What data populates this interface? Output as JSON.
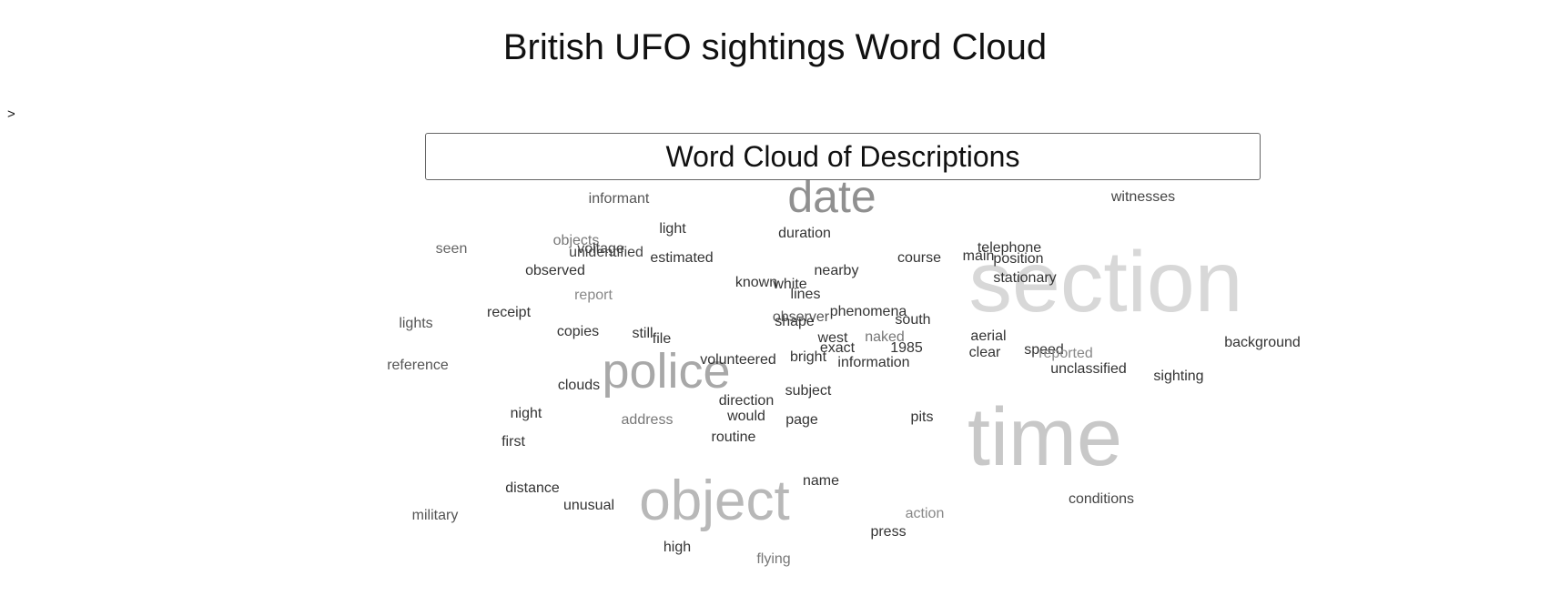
{
  "page": {
    "title": "British UFO sightings Word Cloud",
    "prompt_marker": ">"
  },
  "chart_data": {
    "type": "wordcloud",
    "title": "Word Cloud of Descriptions",
    "words": [
      {
        "text": "section",
        "size": 95,
        "color": "#d8d8d8"
      },
      {
        "text": "time",
        "size": 90,
        "color": "#c8c8c8"
      },
      {
        "text": "object",
        "size": 62,
        "color": "#b8b8b8"
      },
      {
        "text": "police",
        "size": 54,
        "color": "#a8a8a8"
      },
      {
        "text": "date",
        "size": 50,
        "color": "#909090"
      },
      {
        "text": "informant",
        "size": 16,
        "color": "#555555"
      },
      {
        "text": "witnesses",
        "size": 16,
        "color": "#444444"
      },
      {
        "text": "seen",
        "size": 16,
        "color": "#666666"
      },
      {
        "text": "objects",
        "size": 16,
        "color": "#777777"
      },
      {
        "text": "voltage",
        "size": 16,
        "color": "#444444"
      },
      {
        "text": "unidentified",
        "size": 16,
        "color": "#444444"
      },
      {
        "text": "light",
        "size": 16,
        "color": "#333333"
      },
      {
        "text": "duration",
        "size": 16,
        "color": "#333333"
      },
      {
        "text": "telephone",
        "size": 16,
        "color": "#333333"
      },
      {
        "text": "main",
        "size": 16,
        "color": "#333333"
      },
      {
        "text": "position",
        "size": 16,
        "color": "#333333"
      },
      {
        "text": "estimated",
        "size": 16,
        "color": "#333333"
      },
      {
        "text": "course",
        "size": 16,
        "color": "#333333"
      },
      {
        "text": "observed",
        "size": 16,
        "color": "#333333"
      },
      {
        "text": "nearby",
        "size": 16,
        "color": "#333333"
      },
      {
        "text": "stationary",
        "size": 16,
        "color": "#333333"
      },
      {
        "text": "known",
        "size": 16,
        "color": "#333333"
      },
      {
        "text": "white",
        "size": 16,
        "color": "#333333"
      },
      {
        "text": "report",
        "size": 16,
        "color": "#888888"
      },
      {
        "text": "lines",
        "size": 16,
        "color": "#333333"
      },
      {
        "text": "receipt",
        "size": 16,
        "color": "#333333"
      },
      {
        "text": "phenomena",
        "size": 16,
        "color": "#333333"
      },
      {
        "text": "observer",
        "size": 16,
        "color": "#555555"
      },
      {
        "text": "shape",
        "size": 16,
        "color": "#333333"
      },
      {
        "text": "south",
        "size": 16,
        "color": "#333333"
      },
      {
        "text": "lights",
        "size": 16,
        "color": "#555555"
      },
      {
        "text": "copies",
        "size": 16,
        "color": "#333333"
      },
      {
        "text": "still",
        "size": 16,
        "color": "#333333"
      },
      {
        "text": "file",
        "size": 16,
        "color": "#333333"
      },
      {
        "text": "west",
        "size": 16,
        "color": "#333333"
      },
      {
        "text": "naked",
        "size": 16,
        "color": "#777777"
      },
      {
        "text": "aerial",
        "size": 16,
        "color": "#333333"
      },
      {
        "text": "exact",
        "size": 16,
        "color": "#333333"
      },
      {
        "text": "1985",
        "size": 16,
        "color": "#333333"
      },
      {
        "text": "clear",
        "size": 16,
        "color": "#333333"
      },
      {
        "text": "speed",
        "size": 16,
        "color": "#333333"
      },
      {
        "text": "reported",
        "size": 16,
        "color": "#888888"
      },
      {
        "text": "background",
        "size": 16,
        "color": "#333333"
      },
      {
        "text": "volunteered",
        "size": 16,
        "color": "#333333"
      },
      {
        "text": "bright",
        "size": 16,
        "color": "#333333"
      },
      {
        "text": "information",
        "size": 16,
        "color": "#333333"
      },
      {
        "text": "unclassified",
        "size": 16,
        "color": "#333333"
      },
      {
        "text": "reference",
        "size": 16,
        "color": "#555555"
      },
      {
        "text": "sighting",
        "size": 16,
        "color": "#333333"
      },
      {
        "text": "clouds",
        "size": 16,
        "color": "#333333"
      },
      {
        "text": "subject",
        "size": 16,
        "color": "#333333"
      },
      {
        "text": "direction",
        "size": 16,
        "color": "#333333"
      },
      {
        "text": "would",
        "size": 16,
        "color": "#333333"
      },
      {
        "text": "night",
        "size": 16,
        "color": "#333333"
      },
      {
        "text": "address",
        "size": 16,
        "color": "#777777"
      },
      {
        "text": "page",
        "size": 16,
        "color": "#333333"
      },
      {
        "text": "pits",
        "size": 16,
        "color": "#333333"
      },
      {
        "text": "routine",
        "size": 16,
        "color": "#333333"
      },
      {
        "text": "first",
        "size": 16,
        "color": "#333333"
      },
      {
        "text": "name",
        "size": 16,
        "color": "#333333"
      },
      {
        "text": "distance",
        "size": 16,
        "color": "#333333"
      },
      {
        "text": "conditions",
        "size": 16,
        "color": "#444444"
      },
      {
        "text": "unusual",
        "size": 16,
        "color": "#333333"
      },
      {
        "text": "action",
        "size": 16,
        "color": "#888888"
      },
      {
        "text": "military",
        "size": 16,
        "color": "#555555"
      },
      {
        "text": "press",
        "size": 16,
        "color": "#333333"
      },
      {
        "text": "high",
        "size": 16,
        "color": "#333333"
      },
      {
        "text": "flying",
        "size": 16,
        "color": "#777777"
      }
    ]
  }
}
